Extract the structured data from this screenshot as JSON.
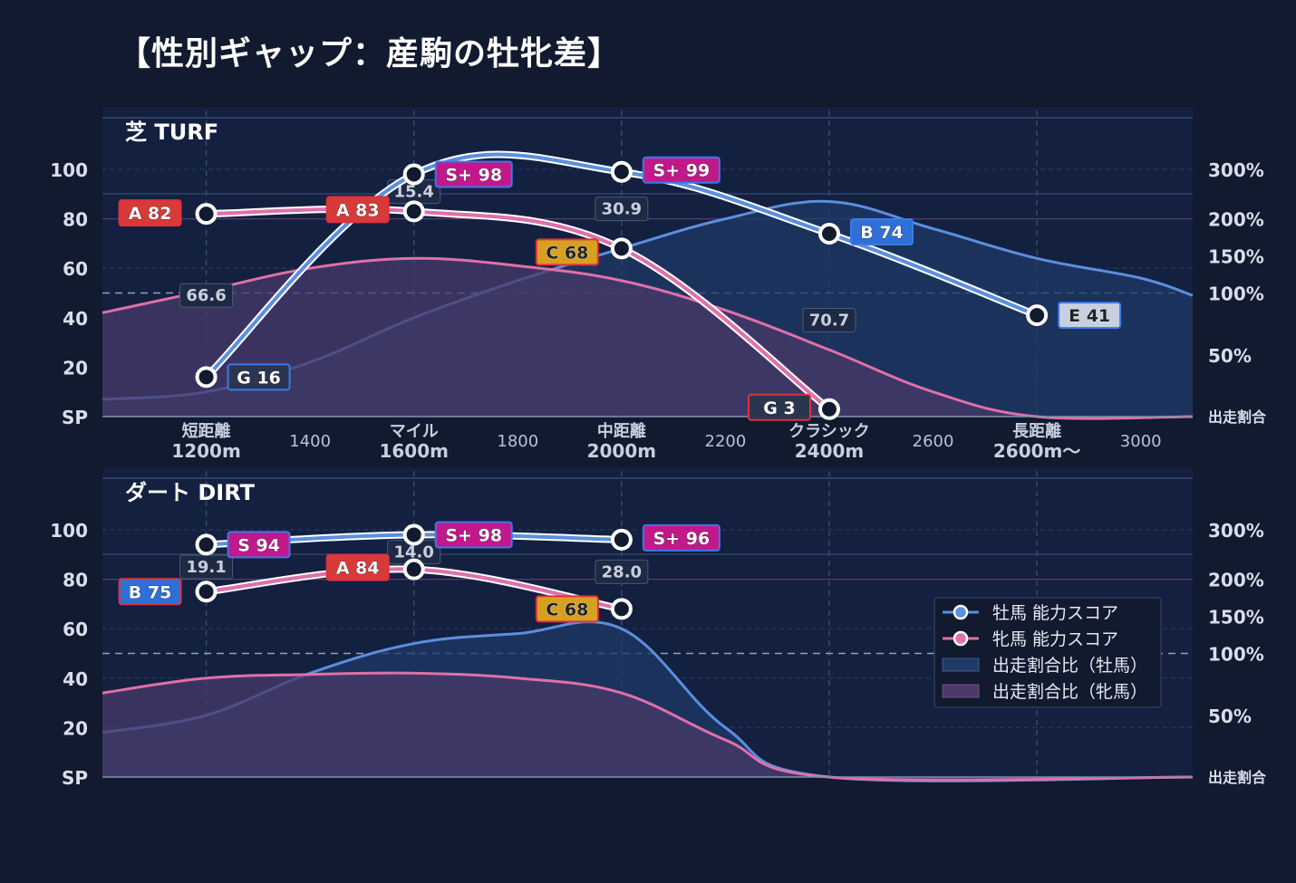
{
  "title": "【性別ギャップ：産駒の牡牝差】",
  "colors": {
    "background": "#111a2e",
    "panel": "#132040",
    "male": "#5b8fdf",
    "female": "#e070a8",
    "male_fill": "#1f3a66",
    "female_fill": "#4a3a6a",
    "grade_S_plus": "#c2188c",
    "grade_S": "#c2188c",
    "grade_A": "#d83a3a",
    "grade_B": "#2f6fd8",
    "grade_C": "#d8a020",
    "grade_E": "#c8d0e0",
    "grade_G": "#2a3550"
  },
  "chart_data": [
    {
      "type": "line",
      "panel_label": "芝 TURF",
      "x_ticks": [
        {
          "x": 1200,
          "label": [
            "短距離",
            "1200m"
          ]
        },
        {
          "x": 1400,
          "label": [
            "1400"
          ]
        },
        {
          "x": 1600,
          "label": [
            "マイル",
            "1600m"
          ]
        },
        {
          "x": 1800,
          "label": [
            "1800"
          ]
        },
        {
          "x": 2000,
          "label": [
            "中距離",
            "2000m"
          ]
        },
        {
          "x": 2200,
          "label": [
            "2200"
          ]
        },
        {
          "x": 2400,
          "label": [
            "クラシック",
            "2400m"
          ]
        },
        {
          "x": 2600,
          "label": [
            "2600"
          ]
        },
        {
          "x": 2800,
          "label": [
            "長距離",
            "2600m〜"
          ]
        },
        {
          "x": 3000,
          "label": [
            "3000"
          ]
        }
      ],
      "xlim": [
        1000,
        3100
      ],
      "ylim": [
        0,
        110
      ],
      "y_ticks_left": [
        "SP",
        "20",
        "40",
        "60",
        "80",
        "100"
      ],
      "y_ticks_right": [
        {
          "v": 300,
          "label": "300%"
        },
        {
          "v": 200,
          "label": "200%"
        },
        {
          "v": 150,
          "label": "150%"
        },
        {
          "v": 100,
          "label": "100%"
        },
        {
          "v": 50,
          "label": "50%"
        },
        {
          "v": 0,
          "label": "出走割合"
        }
      ],
      "series": [
        {
          "name": "牡馬 能力スコア",
          "points": [
            {
              "x": 1200,
              "y": 16,
              "grade": "G",
              "label": "G 16"
            },
            {
              "x": 1600,
              "y": 98,
              "grade": "S+",
              "label": "S+ 98"
            },
            {
              "x": 2000,
              "y": 99,
              "grade": "S+",
              "label": "S+ 99"
            },
            {
              "x": 2400,
              "y": 74,
              "grade": "B",
              "label": "B 74"
            },
            {
              "x": 2800,
              "y": 41,
              "grade": "E",
              "label": "E 41"
            }
          ]
        },
        {
          "name": "牝馬 能力スコア",
          "points": [
            {
              "x": 1200,
              "y": 82,
              "grade": "A",
              "label": "A 82"
            },
            {
              "x": 1600,
              "y": 83,
              "grade": "A",
              "label": "A 83"
            },
            {
              "x": 2000,
              "y": 68,
              "grade": "C",
              "label": "C 68"
            },
            {
              "x": 2400,
              "y": 3,
              "grade": "G",
              "label": "G 3"
            }
          ]
        }
      ],
      "ratio_male": [
        [
          1000,
          7
        ],
        [
          1200,
          10
        ],
        [
          1400,
          22
        ],
        [
          1600,
          40
        ],
        [
          1800,
          55
        ],
        [
          2000,
          68
        ],
        [
          2200,
          80
        ],
        [
          2400,
          87
        ],
        [
          2600,
          76
        ],
        [
          2800,
          64
        ],
        [
          3000,
          56
        ],
        [
          3100,
          49
        ]
      ],
      "ratio_female": [
        [
          1000,
          42
        ],
        [
          1200,
          51
        ],
        [
          1400,
          60
        ],
        [
          1600,
          64
        ],
        [
          1800,
          61
        ],
        [
          2000,
          55
        ],
        [
          2200,
          43
        ],
        [
          2400,
          27
        ],
        [
          2600,
          10
        ],
        [
          2800,
          0
        ],
        [
          3100,
          0
        ]
      ],
      "gap_labels": [
        {
          "x": 1200,
          "value": "66.6"
        },
        {
          "x": 1600,
          "value": "15.4"
        },
        {
          "x": 2000,
          "value": "30.9"
        },
        {
          "x": 2400,
          "value": "70.7"
        }
      ]
    },
    {
      "type": "line",
      "panel_label": "ダート DIRT",
      "xlim": [
        1000,
        3100
      ],
      "ylim": [
        0,
        110
      ],
      "y_ticks_left": [
        "SP",
        "20",
        "40",
        "60",
        "80",
        "100"
      ],
      "y_ticks_right": [
        {
          "v": 300,
          "label": "300%"
        },
        {
          "v": 200,
          "label": "200%"
        },
        {
          "v": 150,
          "label": "150%"
        },
        {
          "v": 100,
          "label": "100%"
        },
        {
          "v": 50,
          "label": "50%"
        },
        {
          "v": 0,
          "label": "出走割合"
        }
      ],
      "series": [
        {
          "name": "牡馬 能力スコア",
          "points": [
            {
              "x": 1200,
              "y": 94,
              "grade": "S",
              "label": "S 94"
            },
            {
              "x": 1600,
              "y": 98,
              "grade": "S+",
              "label": "S+ 98"
            },
            {
              "x": 2000,
              "y": 96,
              "grade": "S+",
              "label": "S+ 96"
            }
          ]
        },
        {
          "name": "牝馬 能力スコア",
          "points": [
            {
              "x": 1200,
              "y": 75,
              "grade": "B",
              "label": "B 75"
            },
            {
              "x": 1600,
              "y": 84,
              "grade": "A",
              "label": "A 84"
            },
            {
              "x": 2000,
              "y": 68,
              "grade": "C",
              "label": "C 68"
            }
          ]
        }
      ],
      "ratio_male": [
        [
          1000,
          18
        ],
        [
          1200,
          25
        ],
        [
          1400,
          42
        ],
        [
          1600,
          54
        ],
        [
          1800,
          58
        ],
        [
          2000,
          60
        ],
        [
          2200,
          20
        ],
        [
          2400,
          0
        ],
        [
          3100,
          0
        ]
      ],
      "ratio_female": [
        [
          1000,
          34
        ],
        [
          1200,
          40
        ],
        [
          1400,
          41.5
        ],
        [
          1600,
          42
        ],
        [
          1800,
          40
        ],
        [
          2000,
          34
        ],
        [
          2200,
          15
        ],
        [
          2400,
          0
        ],
        [
          3100,
          0
        ]
      ],
      "gap_labels": [
        {
          "x": 1200,
          "value": "19.1"
        },
        {
          "x": 1600,
          "value": "14.0"
        },
        {
          "x": 2000,
          "value": "28.0"
        }
      ]
    }
  ],
  "legend": [
    {
      "kind": "line",
      "series": "male",
      "label": "牡馬 能力スコア"
    },
    {
      "kind": "line",
      "series": "female",
      "label": "牝馬 能力スコア"
    },
    {
      "kind": "area",
      "series": "male",
      "label": "出走割合比（牡馬）"
    },
    {
      "kind": "area",
      "series": "female",
      "label": "出走割合比（牝馬）"
    }
  ]
}
